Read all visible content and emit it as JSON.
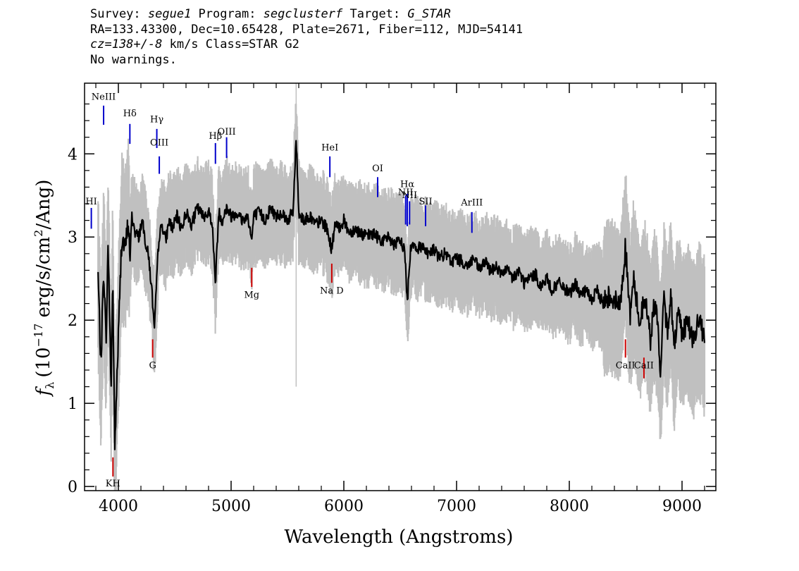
{
  "header": {
    "line1": {
      "survey_label": "Survey: ",
      "survey": "segue1",
      "program_label": " Program: ",
      "program": "segclusterf",
      "target_label": " Target: ",
      "target": "G_STAR"
    },
    "line2": "RA=133.43300, Dec=10.65428, Plate=2671, Fiber=112, MJD=54141",
    "line3": {
      "cz": "cz=138+/-8",
      "rest": " km/s Class=STAR G2"
    },
    "line4": "No warnings."
  },
  "chart_data": {
    "type": "line",
    "xlabel": "Wavelength (Angstroms)",
    "ylabel": "f_λ (10^-17 erg/s/cm^2/Ang)",
    "ylabel_parts": {
      "symbol": "f",
      "subscript": "λ",
      "open": "(10",
      "exp1": "−17",
      "units": " erg/s/cm",
      "exp2": "2",
      "close": "/Ang)"
    },
    "xlim": [
      3700,
      9300
    ],
    "ylim": [
      -0.05,
      4.85
    ],
    "x_ticks": [
      4000,
      5000,
      6000,
      7000,
      8000,
      9000
    ],
    "y_ticks": [
      0,
      1,
      2,
      3,
      4
    ],
    "colors": {
      "flux": "#000000",
      "noise_band": "#c0c0c0",
      "emission": "#0000cc",
      "absorption": "#cc0000"
    },
    "series": [
      {
        "role": "flux",
        "x": [
          3820,
          3845,
          3870,
          3890,
          3910,
          3935,
          3950,
          3968,
          3985,
          4000,
          4030,
          4060,
          4090,
          4102,
          4120,
          4150,
          4180,
          4210,
          4240,
          4270,
          4300,
          4320,
          4340,
          4360,
          4390,
          4420,
          4450,
          4480,
          4520,
          4560,
          4600,
          4650,
          4700,
          4750,
          4800,
          4830,
          4861,
          4890,
          4920,
          4960,
          5000,
          5050,
          5100,
          5150,
          5183,
          5200,
          5250,
          5300,
          5350,
          5400,
          5450,
          5500,
          5550,
          5577,
          5600,
          5650,
          5700,
          5750,
          5800,
          5850,
          5893,
          5920,
          5950,
          6000,
          6050,
          6100,
          6150,
          6200,
          6250,
          6300,
          6350,
          6400,
          6450,
          6500,
          6540,
          6563,
          6590,
          6620,
          6650,
          6700,
          6750,
          6800,
          6850,
          6900,
          6950,
          7000,
          7050,
          7100,
          7150,
          7200,
          7250,
          7300,
          7350,
          7400,
          7450,
          7500,
          7550,
          7600,
          7650,
          7700,
          7750,
          7800,
          7850,
          7900,
          7950,
          8000,
          8050,
          8100,
          8150,
          8200,
          8250,
          8300,
          8350,
          8400,
          8450,
          8498,
          8520,
          8542,
          8570,
          8600,
          8630,
          8662,
          8690,
          8720,
          8750,
          8780,
          8810,
          8840,
          8870,
          8900,
          8930,
          8960,
          9000,
          9050,
          9100,
          9150,
          9200
        ],
        "y": [
          2.55,
          1.45,
          2.65,
          1.75,
          2.9,
          1.2,
          2.5,
          0.45,
          1.2,
          1.8,
          3.0,
          2.85,
          3.2,
          2.7,
          3.25,
          3.05,
          3.0,
          3.2,
          2.95,
          2.75,
          2.3,
          1.85,
          2.5,
          3.0,
          3.15,
          2.95,
          3.2,
          3.1,
          3.25,
          3.1,
          3.3,
          3.15,
          3.35,
          3.25,
          3.3,
          3.2,
          2.45,
          3.3,
          3.2,
          3.35,
          3.25,
          3.3,
          3.2,
          3.25,
          2.95,
          3.25,
          3.3,
          3.2,
          3.35,
          3.25,
          3.3,
          3.2,
          3.3,
          4.2,
          3.3,
          3.2,
          3.25,
          3.15,
          3.2,
          3.1,
          2.85,
          3.15,
          3.1,
          3.2,
          3.05,
          3.1,
          3.05,
          3.0,
          3.05,
          3.0,
          2.95,
          3.0,
          2.9,
          2.95,
          2.85,
          2.2,
          2.85,
          2.95,
          2.85,
          2.9,
          2.8,
          2.85,
          2.75,
          2.8,
          2.7,
          2.75,
          2.7,
          2.65,
          2.75,
          2.6,
          2.7,
          2.6,
          2.65,
          2.55,
          2.6,
          2.5,
          2.6,
          2.45,
          2.5,
          2.55,
          2.4,
          2.5,
          2.35,
          2.45,
          2.4,
          2.3,
          2.45,
          2.3,
          2.35,
          2.25,
          2.35,
          2.2,
          2.3,
          2.25,
          2.15,
          2.9,
          2.4,
          2.05,
          2.5,
          2.2,
          1.95,
          2.3,
          2.1,
          1.75,
          2.2,
          2.0,
          1.4,
          2.25,
          1.85,
          2.35,
          1.6,
          2.15,
          1.85,
          2.0,
          1.75,
          2.0,
          1.8
        ]
      }
    ],
    "spectral_lines": [
      {
        "name": "KH",
        "x": 3952,
        "y_top": 0.35,
        "y_bottom": 0.12,
        "type": "absorption",
        "label_y": 0.0
      },
      {
        "name": "NeIII",
        "x": 3869,
        "y_top": 4.58,
        "y_bottom": 4.35,
        "type": "emission",
        "label_y": 4.65
      },
      {
        "name": "Hδ",
        "x": 4102,
        "y_top": 4.36,
        "y_bottom": 4.12,
        "type": "emission",
        "label_y": 4.45
      },
      {
        "name": "Hγ",
        "x": 4341,
        "y_top": 4.3,
        "y_bottom": 4.07,
        "type": "emission",
        "label_y": 4.38
      },
      {
        "name": "OIII",
        "x": 4363,
        "y_top": 3.97,
        "y_bottom": 3.76,
        "type": "emission",
        "label_y": 4.1
      },
      {
        "name": "G",
        "x": 4304,
        "y_top": 1.77,
        "y_bottom": 1.55,
        "type": "absorption",
        "label_y": 1.42
      },
      {
        "name": "Hβ",
        "x": 4861,
        "y_top": 4.13,
        "y_bottom": 3.88,
        "type": "emission",
        "label_y": 4.18
      },
      {
        "name": "OIII",
        "x": 4960,
        "y_top": 4.2,
        "y_bottom": 3.95,
        "type": "emission",
        "label_y": 4.23
      },
      {
        "name": "Mg",
        "x": 5183,
        "y_top": 2.63,
        "y_bottom": 2.4,
        "type": "absorption",
        "label_y": 2.27
      },
      {
        "name": "HeI",
        "x": 5876,
        "y_top": 3.97,
        "y_bottom": 3.72,
        "type": "emission",
        "label_y": 4.04
      },
      {
        "name": "Na D",
        "x": 5893,
        "y_top": 2.68,
        "y_bottom": 2.45,
        "type": "absorption",
        "label_y": 2.32
      },
      {
        "name": "OI",
        "x": 6300,
        "y_top": 3.72,
        "y_bottom": 3.48,
        "type": "emission",
        "label_y": 3.79
      },
      {
        "name": "NII",
        "x": 6548,
        "y_top": 3.5,
        "y_bottom": 3.15,
        "type": "emission",
        "label_y": 3.5
      },
      {
        "name": "Hα",
        "x": 6563,
        "y_top": 3.52,
        "y_bottom": 3.13,
        "type": "emission",
        "label_y": 3.6
      },
      {
        "name": "NII",
        "x": 6583,
        "y_top": 3.43,
        "y_bottom": 3.15,
        "type": "emission",
        "label_y": 3.47
      },
      {
        "name": "SII",
        "x": 6725,
        "y_top": 3.38,
        "y_bottom": 3.13,
        "type": "emission",
        "label_y": 3.39
      },
      {
        "name": "ArIII",
        "x": 7136,
        "y_top": 3.3,
        "y_bottom": 3.05,
        "type": "emission",
        "label_y": 3.38
      },
      {
        "name": "CaII",
        "x": 8498,
        "y_top": 1.77,
        "y_bottom": 1.55,
        "type": "absorption",
        "label_y": 1.42
      },
      {
        "name": "CaII",
        "x": 8662,
        "y_top": 1.55,
        "y_bottom": 1.3,
        "type": "absorption",
        "label_y": 1.42
      },
      {
        "name": "HI",
        "x": 3760,
        "y_top": 3.35,
        "y_bottom": 3.1,
        "type": "emission",
        "label_y": 3.39
      }
    ]
  }
}
